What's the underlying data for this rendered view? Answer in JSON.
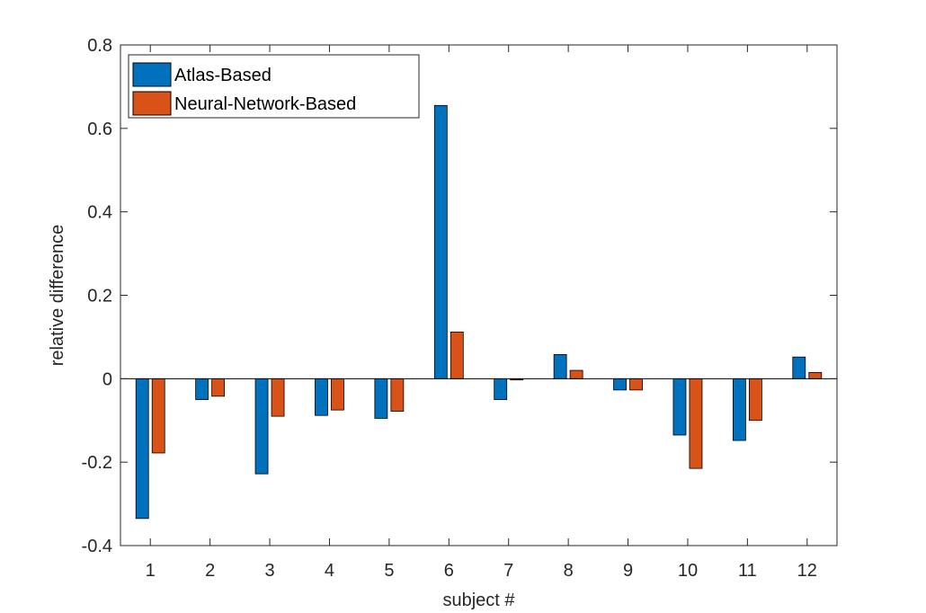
{
  "chart_data": {
    "type": "bar",
    "categories": [
      "1",
      "2",
      "3",
      "4",
      "5",
      "6",
      "7",
      "8",
      "9",
      "10",
      "11",
      "12"
    ],
    "series": [
      {
        "name": "Atlas-Based",
        "color": "#0072BD",
        "values": [
          -0.335,
          -0.05,
          -0.228,
          -0.088,
          -0.095,
          0.655,
          -0.05,
          0.058,
          -0.027,
          -0.135,
          -0.148,
          0.052
        ]
      },
      {
        "name": "Neural-Network-Based",
        "color": "#D95319",
        "values": [
          -0.178,
          -0.042,
          -0.09,
          -0.075,
          -0.078,
          0.112,
          -0.003,
          0.02,
          -0.027,
          -0.215,
          -0.1,
          0.015
        ]
      }
    ],
    "xlabel": "subject #",
    "ylabel": "relative difference",
    "ylim": [
      -0.4,
      0.8
    ],
    "yticks": [
      "-0.4",
      "-0.2",
      "0",
      "0.2",
      "0.4",
      "0.6",
      "0.8"
    ],
    "grid": false,
    "legend": "top-left"
  }
}
